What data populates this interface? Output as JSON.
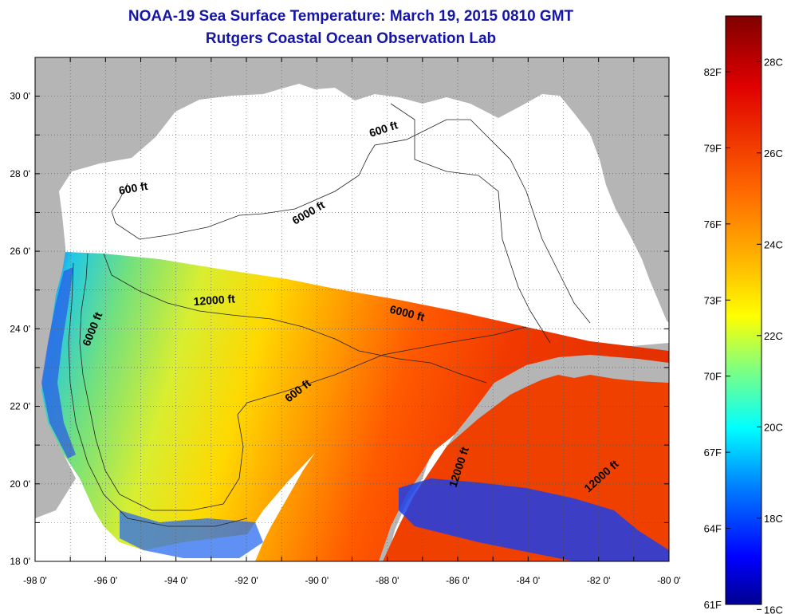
{
  "title": "NOAA-19 Sea Surface Temperature:  March 19, 2015 0810 GMT",
  "subtitle": "Rutgers Coastal Ocean Observation Lab",
  "map": {
    "lon_range": [
      -98,
      -80
    ],
    "lat_range": [
      18,
      31
    ],
    "lon_ticks": [
      "-98 0'",
      "-96 0'",
      "-94 0'",
      "-92 0'",
      "-90 0'",
      "-88 0'",
      "-86 0'",
      "-84 0'",
      "-82 0'",
      "-80 0'"
    ],
    "lat_ticks": [
      "18 0'",
      "20 0'",
      "22 0'",
      "24 0'",
      "26 0'",
      "28 0'",
      "30 0'"
    ],
    "contour_labels": [
      {
        "text": "600 ft"
      },
      {
        "text": "600 ft"
      },
      {
        "text": "6000 ft"
      },
      {
        "text": "12000 ft"
      },
      {
        "text": "6000 ft"
      },
      {
        "text": "6000 ft"
      },
      {
        "text": "600 ft"
      },
      {
        "text": "12000 ft"
      },
      {
        "text": "12000 ft"
      }
    ],
    "colors": {
      "land": "#b5b5b5",
      "nodata": "#ffffff",
      "grid": "#555555"
    }
  },
  "colorbar": {
    "fahrenheit_labels": [
      "82F",
      "79F",
      "76F",
      "73F",
      "70F",
      "67F",
      "64F",
      "61F"
    ],
    "celsius_labels": [
      "28C",
      "26C",
      "24C",
      "22C",
      "20C",
      "18C",
      "16C"
    ],
    "colors": [
      "#800000",
      "#ff0000",
      "#ffa000",
      "#ffff00",
      "#7fff7f",
      "#00ffff",
      "#0080ff",
      "#0000ff",
      "#00008f"
    ]
  }
}
